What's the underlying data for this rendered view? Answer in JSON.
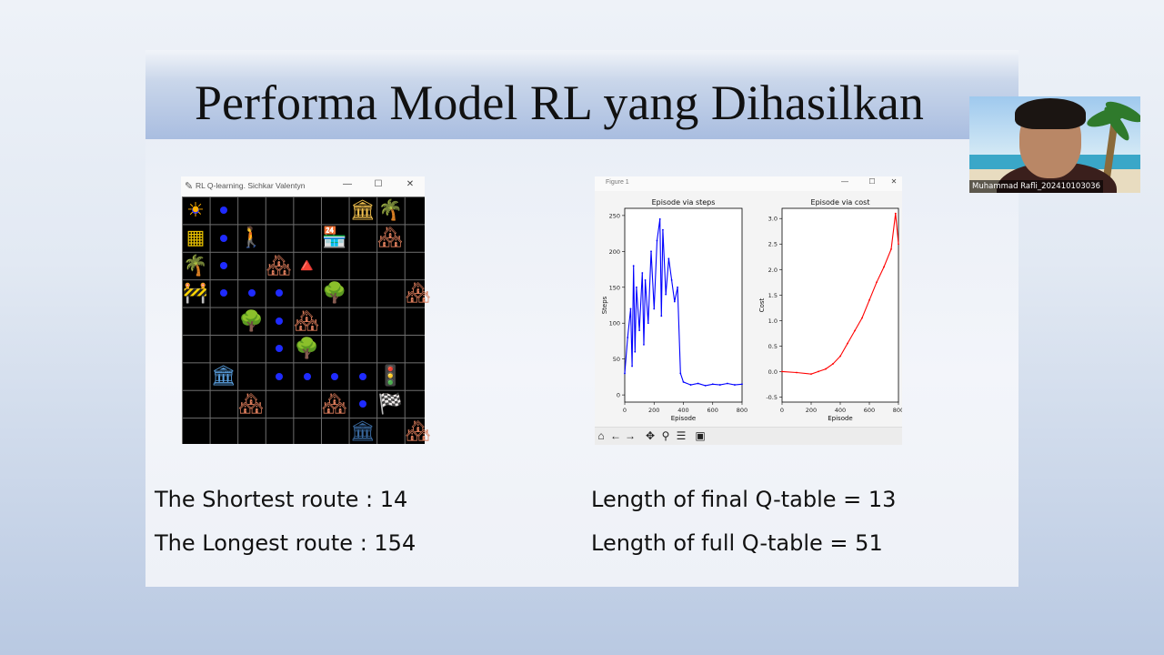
{
  "slide": {
    "title": "Performa Model RL yang Dihasilkan"
  },
  "webcam": {
    "participant_name": "Muhammad Rafli_202410103036"
  },
  "game_window": {
    "title": "RL Q-learning. Sichkar Valentyn",
    "controls": [
      "—",
      "☐",
      "✕"
    ],
    "icons": [
      "sun-icon",
      "hazard-icon",
      "pedestrian-icon",
      "shop-icon",
      "house-icon",
      "cone-icon",
      "tree-icon",
      "palm-icon",
      "bank-icon",
      "traffic-light-icon",
      "finish-flag-icon",
      "barrier-icon"
    ]
  },
  "plot_window": {
    "title": "Figure 1",
    "controls": [
      "—",
      "☐",
      "✕"
    ],
    "toolbar": [
      "home-icon",
      "back-icon",
      "forward-icon",
      "pan-icon",
      "zoom-icon",
      "configure-icon",
      "save-icon"
    ]
  },
  "chart_data": [
    {
      "type": "line",
      "title": "Episode via steps",
      "xlabel": "Episode",
      "ylabel": "Steps",
      "color": "#0000ff",
      "xlim": [
        0,
        800
      ],
      "ylim": [
        -10,
        260
      ],
      "xticks": [
        0,
        200,
        400,
        600,
        800
      ],
      "yticks": [
        0,
        50,
        100,
        150,
        200,
        250
      ],
      "x": [
        0,
        20,
        40,
        50,
        60,
        70,
        80,
        100,
        120,
        130,
        140,
        160,
        180,
        200,
        220,
        240,
        250,
        260,
        280,
        300,
        320,
        340,
        360,
        380,
        400,
        450,
        500,
        550,
        600,
        650,
        700,
        750,
        800
      ],
      "y": [
        30,
        80,
        120,
        40,
        180,
        60,
        150,
        90,
        170,
        70,
        160,
        100,
        200,
        120,
        215,
        245,
        110,
        230,
        140,
        190,
        160,
        130,
        150,
        30,
        18,
        14,
        16,
        13,
        15,
        14,
        16,
        14,
        15
      ]
    },
    {
      "type": "line",
      "title": "Episode via cost",
      "xlabel": "Episode",
      "ylabel": "Cost",
      "color": "#ff0000",
      "xlim": [
        0,
        800
      ],
      "ylim": [
        -0.6,
        3.2
      ],
      "xticks": [
        0,
        200,
        400,
        600,
        800
      ],
      "yticks": [
        -0.5,
        0.0,
        0.5,
        1.0,
        1.5,
        2.0,
        2.5,
        3.0
      ],
      "x": [
        0,
        100,
        200,
        250,
        300,
        350,
        400,
        450,
        500,
        550,
        600,
        650,
        700,
        750,
        780,
        800
      ],
      "y": [
        0.0,
        -0.02,
        -0.05,
        0.0,
        0.05,
        0.15,
        0.3,
        0.55,
        0.8,
        1.05,
        1.4,
        1.75,
        2.05,
        2.4,
        3.1,
        2.5
      ]
    }
  ],
  "stats": {
    "shortest": "The Shortest route : 14",
    "longest": "The Longest route : 154",
    "final_q": "Length of final Q-table = 13",
    "full_q": "Length of full Q-table = 51"
  }
}
